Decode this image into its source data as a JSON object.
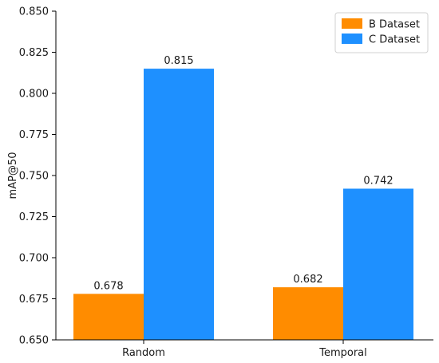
{
  "chart_data": {
    "type": "bar",
    "categories": [
      "Random",
      "Temporal"
    ],
    "series": [
      {
        "name": "B Dataset",
        "values": [
          0.678,
          0.682
        ],
        "color": "#ff8c00"
      },
      {
        "name": "C Dataset",
        "values": [
          0.815,
          0.742
        ],
        "color": "#1e90ff"
      }
    ],
    "data_labels": [
      [
        "0.678",
        "0.682"
      ],
      [
        "0.815",
        "0.742"
      ]
    ],
    "ylabel": "mAP@50",
    "xlabel": "",
    "ylim": [
      0.65,
      0.85
    ],
    "yticks": [
      "0.650",
      "0.675",
      "0.700",
      "0.725",
      "0.750",
      "0.775",
      "0.800",
      "0.825",
      "0.850"
    ],
    "grid": false,
    "legend_position": "top-right"
  }
}
